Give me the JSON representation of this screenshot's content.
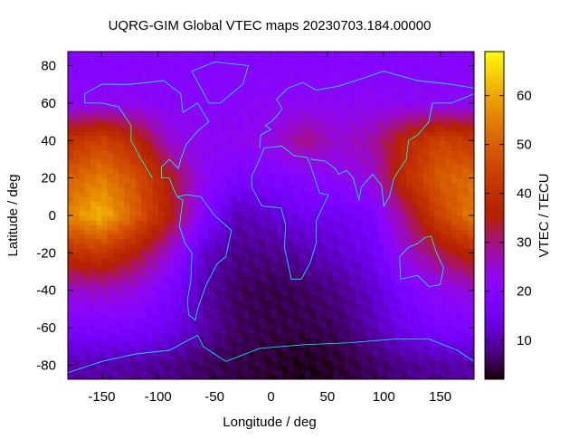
{
  "chart_data": {
    "type": "heatmap",
    "title": "UQRG-GIM Global VTEC maps 20230703.184.00000",
    "xlabel": "Longitude / deg",
    "ylabel": "Latitude / deg",
    "colorbar_label": "VTEC / TECU",
    "xlim": [
      -180,
      180
    ],
    "ylim": [
      -87.5,
      87.5
    ],
    "clim": [
      2,
      69
    ],
    "xticks": [
      -150,
      -100,
      -50,
      0,
      50,
      100,
      150
    ],
    "yticks": [
      -80,
      -60,
      -40,
      -20,
      0,
      20,
      40,
      60,
      80
    ],
    "cticks": [
      10,
      20,
      30,
      40,
      50,
      60
    ],
    "palette": "black-purple-red-orange-yellow",
    "coastline_color": "#00ffff",
    "grid_lon": [
      -180,
      -150,
      -120,
      -90,
      -60,
      -30,
      0,
      30,
      60,
      90,
      120,
      150,
      180
    ],
    "grid_lat": [
      80,
      60,
      40,
      20,
      0,
      -20,
      -40,
      -60,
      -80
    ],
    "values": [
      [
        20,
        20,
        20,
        20,
        20,
        20,
        20,
        20,
        20,
        20,
        20,
        20,
        20
      ],
      [
        22,
        22,
        22,
        21,
        21,
        21,
        22,
        22,
        22,
        22,
        22,
        22,
        22
      ],
      [
        40,
        45,
        38,
        25,
        22,
        22,
        24,
        30,
        25,
        28,
        38,
        45,
        42
      ],
      [
        50,
        55,
        48,
        35,
        22,
        18,
        18,
        20,
        22,
        25,
        40,
        50,
        52
      ],
      [
        56,
        62,
        50,
        36,
        20,
        10,
        12,
        15,
        15,
        18,
        30,
        45,
        55
      ],
      [
        40,
        42,
        35,
        25,
        12,
        8,
        8,
        10,
        12,
        15,
        25,
        32,
        38
      ],
      [
        25,
        26,
        24,
        18,
        10,
        6,
        5,
        6,
        8,
        12,
        18,
        22,
        25
      ],
      [
        18,
        18,
        18,
        15,
        10,
        6,
        5,
        5,
        6,
        10,
        15,
        18,
        18
      ],
      [
        10,
        10,
        9,
        8,
        6,
        5,
        4,
        3,
        4,
        6,
        8,
        9,
        10
      ]
    ]
  }
}
